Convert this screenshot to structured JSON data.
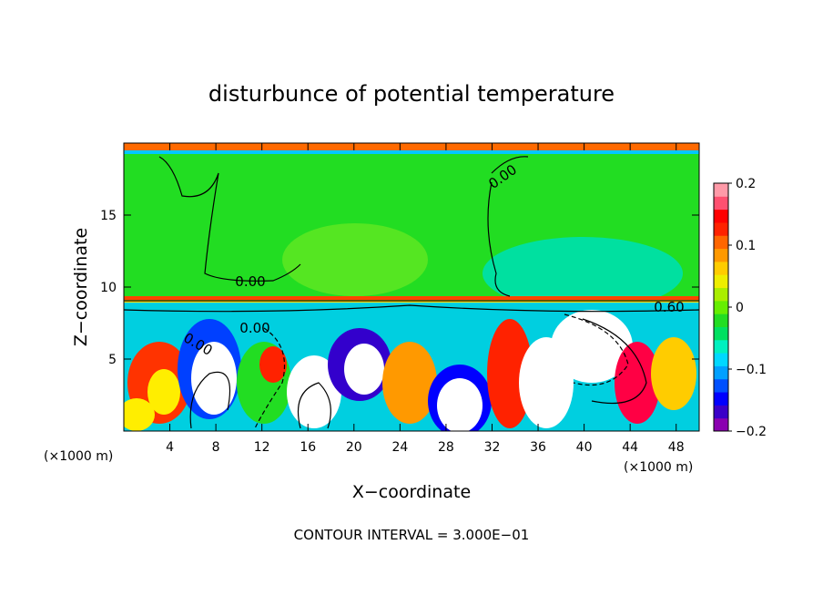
{
  "chart_data": {
    "type": "heatmap",
    "title": "disturbunce of potential temperature",
    "xlabel": "X−coordinate",
    "ylabel": "Z−coordinate",
    "x_unit_left": "(×1000 m)",
    "x_unit_right": "(×1000 m)",
    "xlim": [
      0,
      50
    ],
    "ylim": [
      0,
      20
    ],
    "x_ticks": [
      4,
      8,
      12,
      16,
      20,
      24,
      28,
      32,
      36,
      40,
      44,
      48
    ],
    "y_ticks": [
      5,
      10,
      15
    ],
    "colorbar": {
      "range": [
        -0.2,
        0.2
      ],
      "ticks": [
        0.2,
        0.1,
        0,
        -0.1,
        -0.2
      ],
      "tick_labels": [
        "0.2",
        "0.1",
        "0",
        "−0.1",
        "−0.2"
      ],
      "colors": [
        "#8a00b0",
        "#3a00c8",
        "#0000ff",
        "#0050ff",
        "#00a0ff",
        "#00d8ff",
        "#00f0c0",
        "#00e060",
        "#22dd22",
        "#66ee00",
        "#aaee00",
        "#eeee00",
        "#ffcc00",
        "#ff9900",
        "#ff6600",
        "#ff2200",
        "#ff0000",
        "#ff5070",
        "#ff9aa8"
      ]
    },
    "contour_labels": [
      "0.00",
      "0.00",
      "0.00",
      "0.00",
      "0.60"
    ],
    "footer": "CONTOUR INTERVAL = 3.000E−01"
  },
  "colors": {
    "background": "#ffffff",
    "upper_field": "#22dd22",
    "axis": "#000000"
  }
}
